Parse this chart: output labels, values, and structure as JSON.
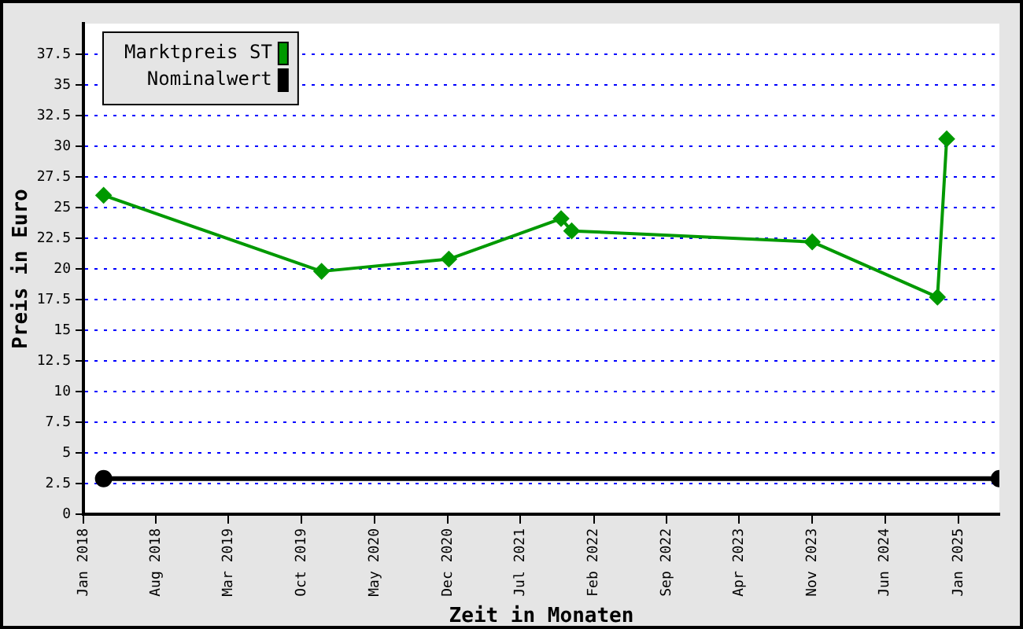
{
  "chart_data": {
    "type": "line",
    "xlabel": "Zeit in Monaten",
    "ylabel": "Preis in Euro",
    "xlim": [
      "2018-01-01",
      "2025-05-01"
    ],
    "xticks": [
      {
        "value": "2018-01",
        "label": "Jan 2018"
      },
      {
        "value": "2018-08",
        "label": "Aug 2018"
      },
      {
        "value": "2019-03",
        "label": "Mar 2019"
      },
      {
        "value": "2019-10",
        "label": "Oct 2019"
      },
      {
        "value": "2020-05",
        "label": "May 2020"
      },
      {
        "value": "2020-12",
        "label": "Dec 2020"
      },
      {
        "value": "2021-07",
        "label": "Jul 2021"
      },
      {
        "value": "2022-02",
        "label": "Feb 2022"
      },
      {
        "value": "2022-09",
        "label": "Sep 2022"
      },
      {
        "value": "2023-04",
        "label": "Apr 2023"
      },
      {
        "value": "2023-11",
        "label": "Nov 2023"
      },
      {
        "value": "2024-06",
        "label": "Jun 2024"
      },
      {
        "value": "2025-01",
        "label": "Jan 2025"
      }
    ],
    "ylim": [
      0,
      40
    ],
    "yticks": [
      0,
      2.5,
      5,
      7.5,
      10,
      12.5,
      15,
      17.5,
      20,
      22.5,
      25,
      27.5,
      30,
      32.5,
      35,
      37.5
    ],
    "grid": "y",
    "legend": "top left",
    "series": [
      {
        "name": "Marktpreis ST",
        "color": "#009900",
        "marker": "diamond",
        "x": [
          "2018-03-01",
          "2019-11-28",
          "2020-12-04",
          "2021-10-28",
          "2021-11-28",
          "2023-11-01",
          "2024-11-01",
          "2024-11-28"
        ],
        "values": [
          26.0,
          19.8,
          20.8,
          24.1,
          23.1,
          22.2,
          17.7,
          30.6
        ]
      },
      {
        "name": "Nominalwert",
        "color": "#000000",
        "marker": "circle",
        "x": [
          "2018-03-01",
          "2025-05-01"
        ],
        "values": [
          2.9,
          2.9
        ]
      }
    ]
  }
}
